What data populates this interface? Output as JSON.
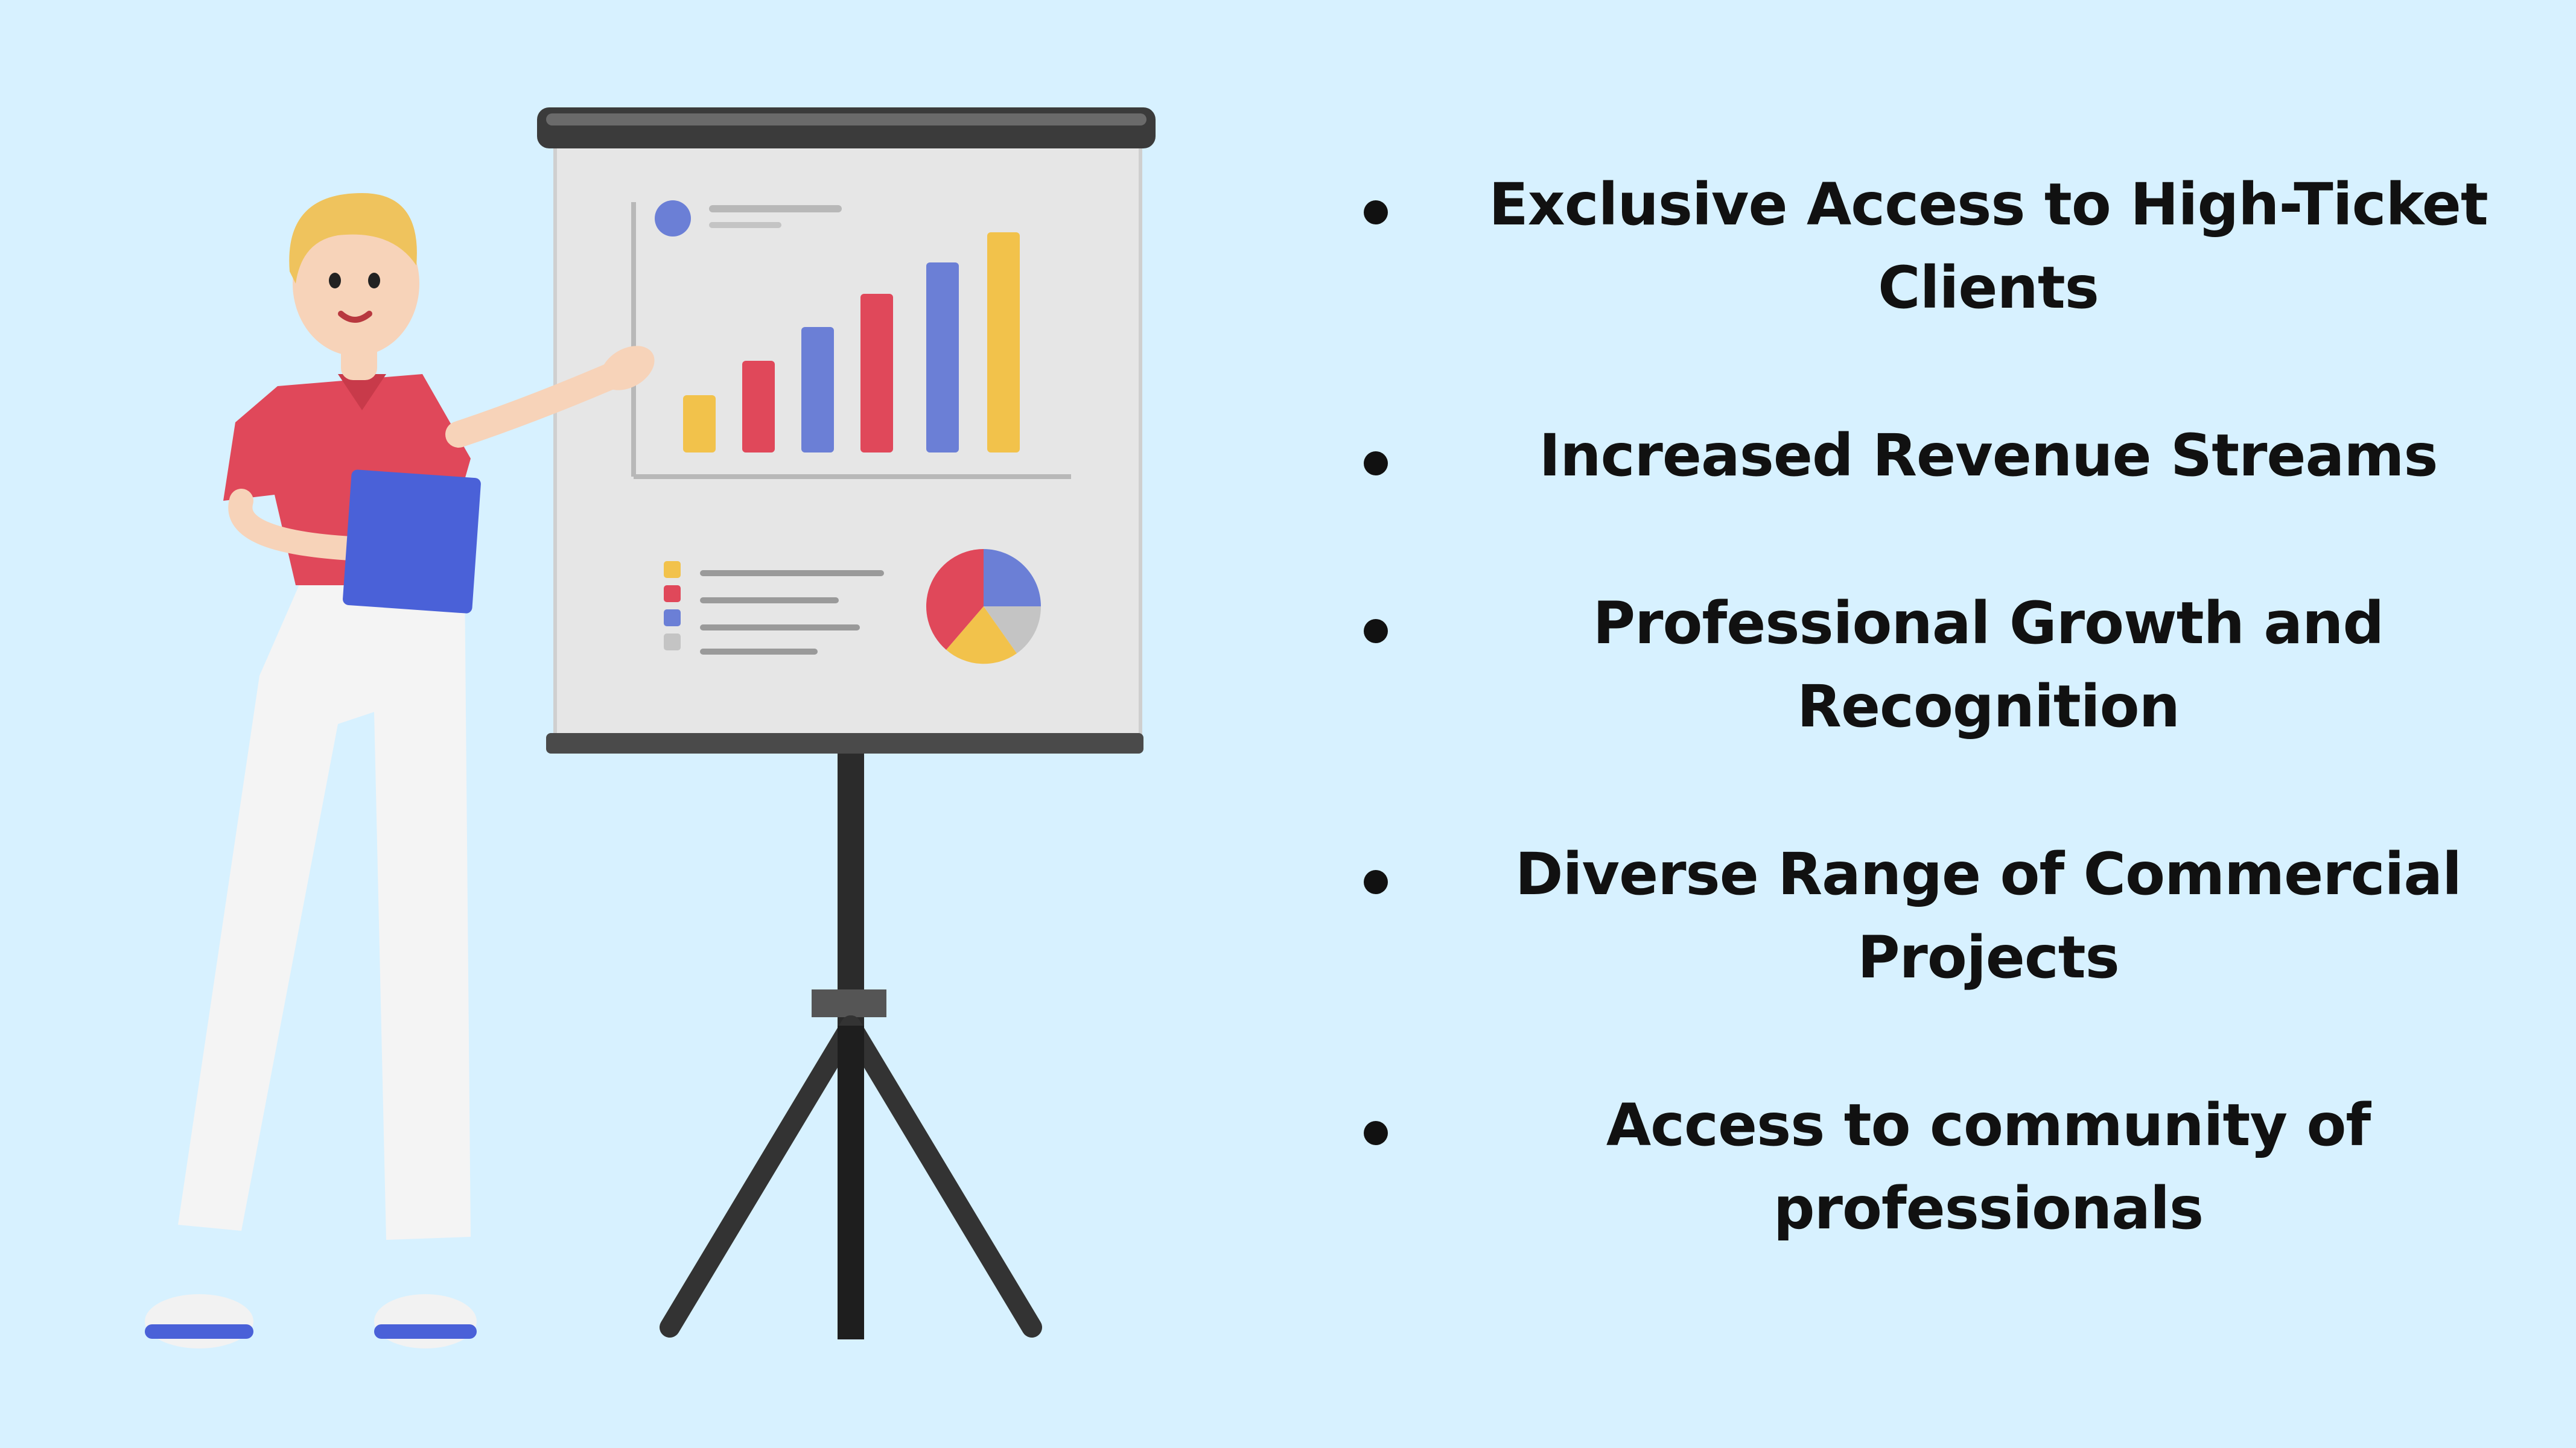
{
  "colors": {
    "background": "#d7f1ff",
    "text": "#111111",
    "bar_yellow": "#f2c24b",
    "bar_red": "#e0485a",
    "bar_blue": "#6b7fd6",
    "board": "#e6e6e6",
    "shirt": "#e0485a",
    "clipboard": "#4a61d8"
  },
  "icons": {
    "figure": "presenter-woman-icon",
    "board": "flipchart-easel-icon"
  },
  "benefits": [
    {
      "text": "Exclusive Access to High-Ticket Clients"
    },
    {
      "text": "Increased Revenue Streams"
    },
    {
      "text": "Professional Growth and Recognition"
    },
    {
      "text": "Diverse Range of Commercial Projects"
    },
    {
      "text": "Access to community of professionals"
    }
  ]
}
